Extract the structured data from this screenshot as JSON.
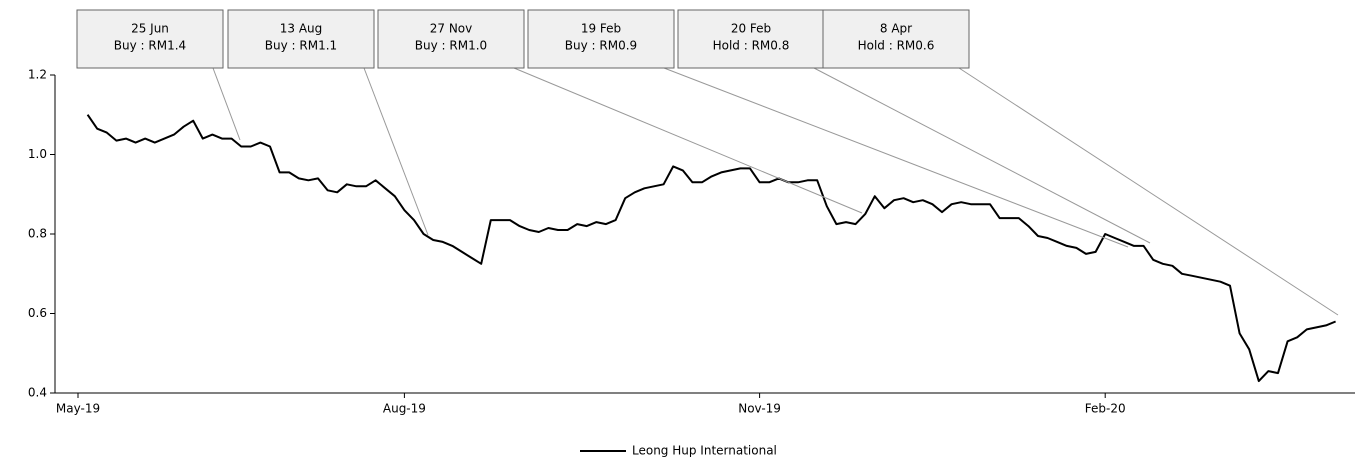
{
  "chart_data": {
    "type": "line",
    "categories": [
      "May-19",
      null,
      null,
      null,
      null,
      null,
      null,
      null,
      null,
      null,
      null,
      null,
      null,
      null,
      null,
      null,
      null,
      null,
      null,
      null,
      null,
      null,
      null,
      null,
      null,
      null,
      null,
      null,
      null,
      null,
      null,
      null,
      null,
      null,
      "Aug-19",
      null,
      null,
      null,
      null,
      null,
      null,
      null,
      null,
      null,
      null,
      null,
      null,
      null,
      null,
      null,
      null,
      null,
      null,
      null,
      null,
      null,
      null,
      null,
      null,
      null,
      null,
      null,
      null,
      null,
      null,
      null,
      null,
      null,
      null,
      null,
      null,
      "Nov-19",
      null,
      null,
      null,
      null,
      null,
      null,
      null,
      null,
      null,
      null,
      null,
      null,
      null,
      null,
      null,
      null,
      null,
      null,
      null,
      null,
      null,
      null,
      null,
      null,
      null,
      null,
      null,
      null,
      null,
      null,
      null,
      null,
      null,
      null,
      null,
      "Feb-20",
      null,
      null,
      null,
      null,
      null,
      null,
      null,
      null,
      null,
      null,
      null,
      null,
      null,
      null,
      null,
      null,
      null,
      null,
      null,
      null,
      null,
      null,
      null,
      null
    ],
    "series": [
      {
        "name": "Leong Hup International",
        "color": "#000000",
        "values": [
          null,
          1.1,
          1.065,
          1.055,
          1.035,
          1.04,
          1.03,
          1.04,
          1.03,
          1.04,
          1.05,
          1.07,
          1.085,
          1.04,
          1.05,
          1.04,
          1.04,
          1.02,
          1.02,
          1.03,
          1.02,
          0.955,
          0.955,
          0.94,
          0.935,
          0.94,
          0.91,
          0.905,
          0.925,
          0.92,
          0.92,
          0.935,
          0.915,
          0.895,
          0.86,
          0.835,
          0.8,
          0.785,
          0.78,
          0.77,
          0.755,
          0.74,
          0.725,
          0.835,
          0.835,
          0.835,
          0.82,
          0.81,
          0.805,
          0.815,
          0.81,
          0.81,
          0.825,
          0.82,
          0.83,
          0.825,
          0.835,
          0.89,
          0.905,
          0.915,
          0.92,
          0.925,
          0.97,
          0.96,
          0.93,
          0.93,
          0.945,
          0.955,
          0.96,
          0.965,
          0.965,
          0.93,
          0.93,
          0.94,
          0.93,
          0.93,
          0.935,
          0.935,
          0.87,
          0.825,
          0.83,
          0.825,
          0.85,
          0.895,
          0.865,
          0.885,
          0.89,
          0.88,
          0.885,
          0.875,
          0.855,
          0.875,
          0.88,
          0.875,
          0.875,
          0.875,
          0.84,
          0.84,
          0.84,
          0.82,
          0.795,
          0.79,
          0.78,
          0.77,
          0.765,
          0.75,
          0.755,
          0.8,
          0.79,
          0.78,
          0.77,
          0.77,
          0.735,
          0.725,
          0.72,
          0.7,
          0.695,
          0.69,
          0.685,
          0.68,
          0.67,
          0.55,
          0.51,
          0.43,
          0.455,
          0.45,
          0.53,
          0.54,
          0.56,
          0.565,
          0.57,
          0.58
        ]
      }
    ],
    "ylim": [
      0.4,
      1.2
    ],
    "yticks": [
      0.4,
      0.6,
      0.8,
      {
        "value": 1,
        "label": "1.0"
      },
      1.2
    ],
    "grid": false,
    "legend": "bottom",
    "annotations": [
      {
        "date": "25 Jun",
        "label": "Buy : RM1.4"
      },
      {
        "date": "13 Aug",
        "label": "Buy : RM1.1"
      },
      {
        "date": "27 Nov",
        "label": "Buy : RM1.0"
      },
      {
        "date": "19 Feb",
        "label": "Buy : RM0.9"
      },
      {
        "date": "20 Feb",
        "label": "Hold : RM0.8"
      },
      {
        "date": "8 Apr",
        "label": "Hold : RM0.6"
      }
    ]
  }
}
